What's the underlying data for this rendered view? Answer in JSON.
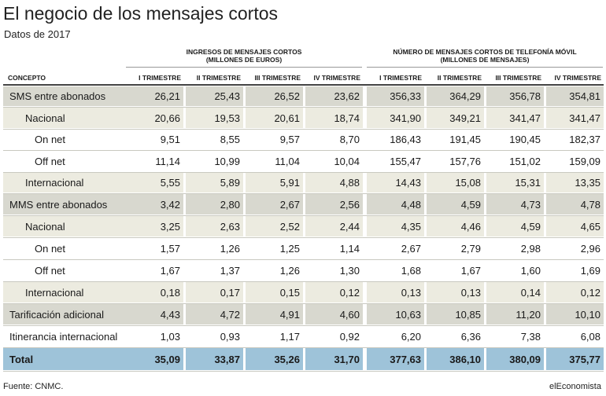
{
  "title": "El negocio de los mensajes cortos",
  "subtitle": "Datos de 2017",
  "source": "Fuente: CNMC.",
  "brand": "elEconomista",
  "chart_data": {
    "type": "table",
    "groups": [
      {
        "title": "INGRESOS DE MENSAJES CORTOS",
        "subtitle": "(MILLONES DE EUROS)"
      },
      {
        "title": "NÚMERO DE MENSAJES CORTOS DE TELEFONÍA MÓVIL",
        "subtitle": "(MILLONES DE MENSAJES)"
      }
    ],
    "concept_header": "CONCEPTO",
    "columns": [
      "I TRIMESTRE",
      "II TRIMESTRE",
      "III TRIMESTRE",
      "IV TRIMESTRE",
      "I TRIMESTRE",
      "II TRIMESTRE",
      "III TRIMESTRE",
      "IV TRIMESTRE"
    ],
    "rows": [
      {
        "label": "SMS entre abonados",
        "level": 0,
        "values": [
          "26,21",
          "25,43",
          "26,52",
          "23,62",
          "356,33",
          "364,29",
          "356,78",
          "354,81"
        ]
      },
      {
        "label": "Nacional",
        "level": 1,
        "values": [
          "20,66",
          "19,53",
          "20,61",
          "18,74",
          "341,90",
          "349,21",
          "341,47",
          "341,47"
        ]
      },
      {
        "label": "On net",
        "level": 2,
        "values": [
          "9,51",
          "8,55",
          "9,57",
          "8,70",
          "186,43",
          "191,45",
          "190,45",
          "182,37"
        ]
      },
      {
        "label": "Off net",
        "level": 2,
        "values": [
          "11,14",
          "10,99",
          "11,04",
          "10,04",
          "155,47",
          "157,76",
          "151,02",
          "159,09"
        ]
      },
      {
        "label": "Internacional",
        "level": 1,
        "values": [
          "5,55",
          "5,89",
          "5,91",
          "4,88",
          "14,43",
          "15,08",
          "15,31",
          "13,35"
        ]
      },
      {
        "label": "MMS entre abonados",
        "level": 0,
        "values": [
          "3,42",
          "2,80",
          "2,67",
          "2,56",
          "4,48",
          "4,59",
          "4,73",
          "4,78"
        ]
      },
      {
        "label": "Nacional",
        "level": 1,
        "values": [
          "3,25",
          "2,63",
          "2,52",
          "2,44",
          "4,35",
          "4,46",
          "4,59",
          "4,65"
        ]
      },
      {
        "label": "On net",
        "level": 2,
        "values": [
          "1,57",
          "1,26",
          "1,25",
          "1,14",
          "2,67",
          "2,79",
          "2,98",
          "2,96"
        ]
      },
      {
        "label": "Off net",
        "level": 2,
        "values": [
          "1,67",
          "1,37",
          "1,26",
          "1,30",
          "1,68",
          "1,67",
          "1,60",
          "1,69"
        ]
      },
      {
        "label": "Internacional",
        "level": 1,
        "values": [
          "0,18",
          "0,17",
          "0,15",
          "0,12",
          "0,13",
          "0,13",
          "0,14",
          "0,12"
        ]
      },
      {
        "label": "Tarificación adicional",
        "level": 0,
        "values": [
          "4,43",
          "4,72",
          "4,91",
          "4,60",
          "10,63",
          "10,85",
          "11,20",
          "10,10"
        ]
      },
      {
        "label": "Itinerancia internacional",
        "level": 0,
        "plain": true,
        "values": [
          "1,03",
          "0,93",
          "1,17",
          "0,92",
          "6,20",
          "6,36",
          "7,38",
          "6,08"
        ]
      },
      {
        "label": "Total",
        "level": 0,
        "total": true,
        "values": [
          "35,09",
          "33,87",
          "35,26",
          "31,70",
          "377,63",
          "386,10",
          "380,09",
          "375,77"
        ]
      }
    ]
  },
  "colors": {
    "level0_fill": "#d8d8cf",
    "level1_fill": "#ecebe0",
    "total_fill": "#9ec3d9"
  }
}
